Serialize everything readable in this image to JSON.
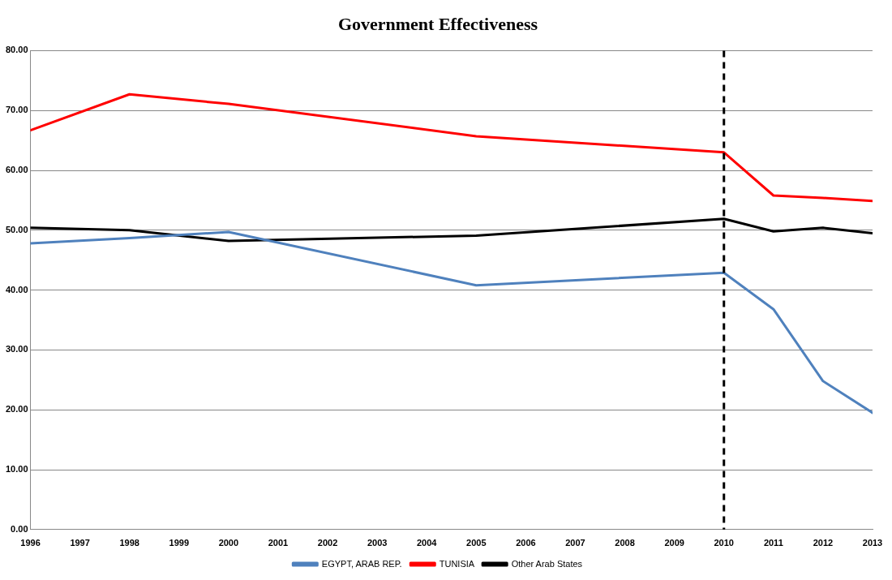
{
  "chart_data": {
    "type": "line",
    "title": "Government Effectiveness",
    "x": [
      1996,
      1998,
      2000,
      2005,
      2010,
      2011,
      2012,
      2013
    ],
    "series": [
      {
        "name": "EGYPT, ARAB REP.",
        "color": "#4f81bd",
        "values": [
          47.8,
          48.7,
          49.7,
          40.8,
          42.9,
          36.8,
          24.8,
          19.5
        ]
      },
      {
        "name": "TUNISIA",
        "color": "#ff0000",
        "values": [
          66.7,
          72.7,
          71.1,
          65.7,
          63.0,
          55.8,
          55.4,
          54.9
        ]
      },
      {
        "name": "Other Arab States",
        "color": "#000000",
        "values": [
          50.4,
          50.0,
          48.2,
          49.1,
          51.9,
          49.8,
          50.4,
          49.5
        ]
      }
    ],
    "xlim": [
      1996,
      2013
    ],
    "xticks": [
      1996,
      1997,
      1998,
      1999,
      2000,
      2001,
      2002,
      2003,
      2004,
      2005,
      2006,
      2007,
      2008,
      2009,
      2010,
      2011,
      2012,
      2013
    ],
    "ylim": [
      0,
      80
    ],
    "yticks": [
      {
        "value": 0,
        "label": "0.00"
      },
      {
        "value": 10,
        "label": "10.00"
      },
      {
        "value": 20,
        "label": "20.00"
      },
      {
        "value": 30,
        "label": "30.00"
      },
      {
        "value": 40,
        "label": "40.00"
      },
      {
        "value": 50,
        "label": "50.00"
      },
      {
        "value": 60,
        "label": "60.00"
      },
      {
        "value": 70,
        "label": "70.00"
      },
      {
        "value": 80,
        "label": "80.00"
      }
    ],
    "ref_lines": [
      {
        "axis": "x",
        "value": 2010,
        "color": "#000000",
        "line_style": "dashed"
      }
    ],
    "grid": "y",
    "legend": "bottom",
    "marker": "none",
    "line_style": "solid"
  }
}
